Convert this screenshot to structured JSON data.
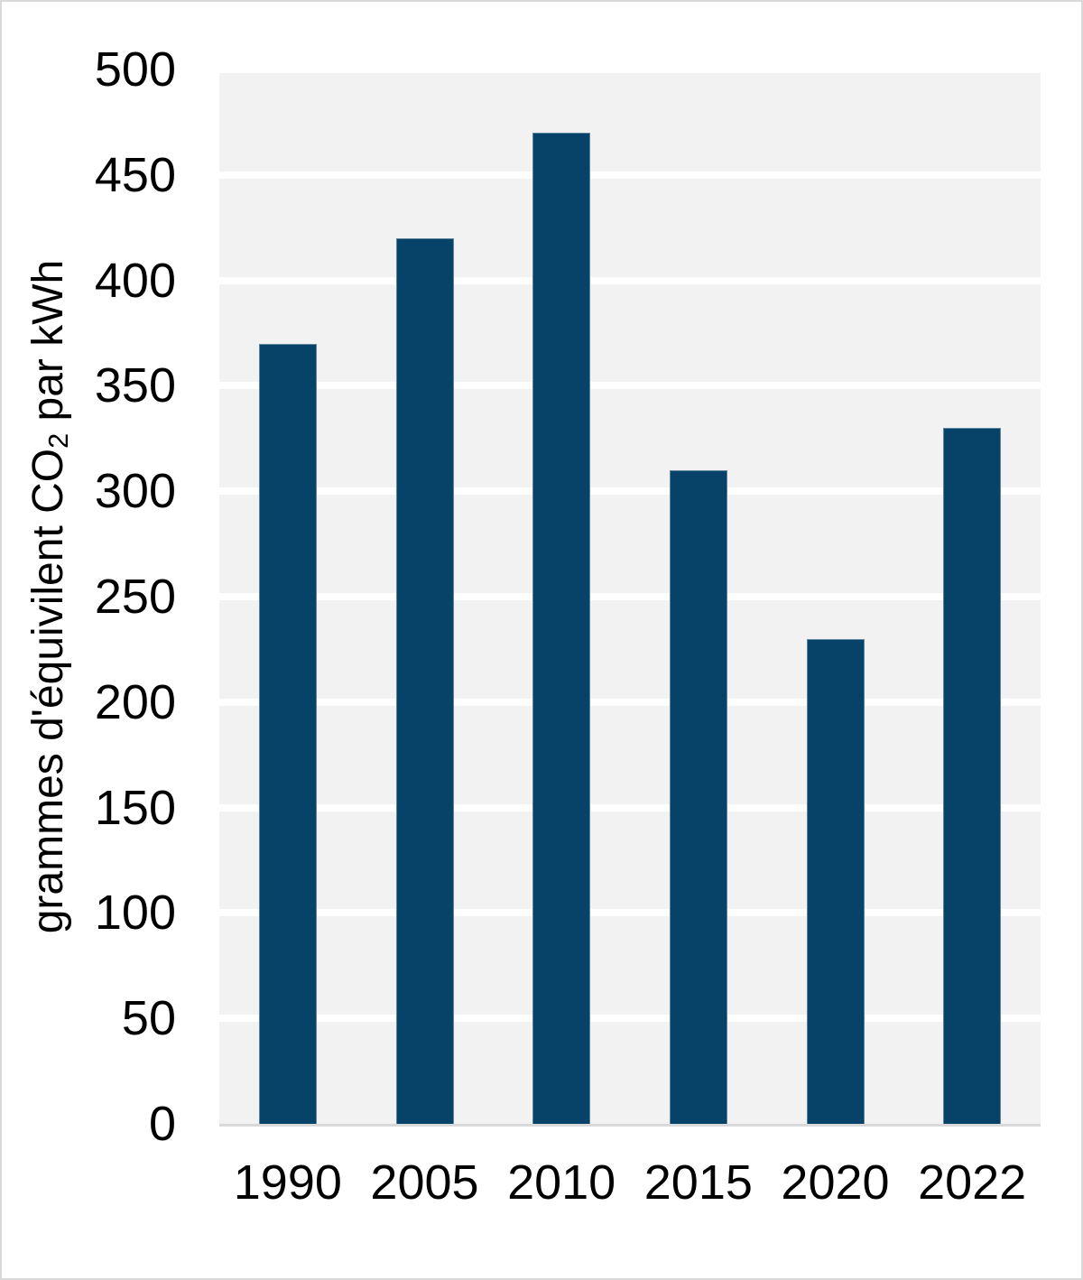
{
  "chart_data": {
    "type": "bar",
    "categories": [
      "1990",
      "2005",
      "2010",
      "2015",
      "2020",
      "2022"
    ],
    "values": [
      370,
      420,
      470,
      310,
      230,
      330
    ],
    "title": "",
    "xlabel": "",
    "ylabel": "grammes d'équivilent CO2 par kWh",
    "ylabel_parts": {
      "pre": "grammes d'équivilent CO",
      "sub": "2",
      "post": " par kWh"
    },
    "y_ticks": [
      0,
      50,
      100,
      150,
      200,
      250,
      300,
      350,
      400,
      450,
      500
    ],
    "ylim": [
      0,
      500
    ],
    "grid": "horizontal",
    "legend_position": "none"
  },
  "colors": {
    "bar": "#074369",
    "plot_background": "#f2f2f2",
    "gridline": "#ffffff",
    "axis_line": "#d9d9d9",
    "text": "#000000",
    "page_background": "#ffffff",
    "page_border": "#d9d9d9"
  }
}
